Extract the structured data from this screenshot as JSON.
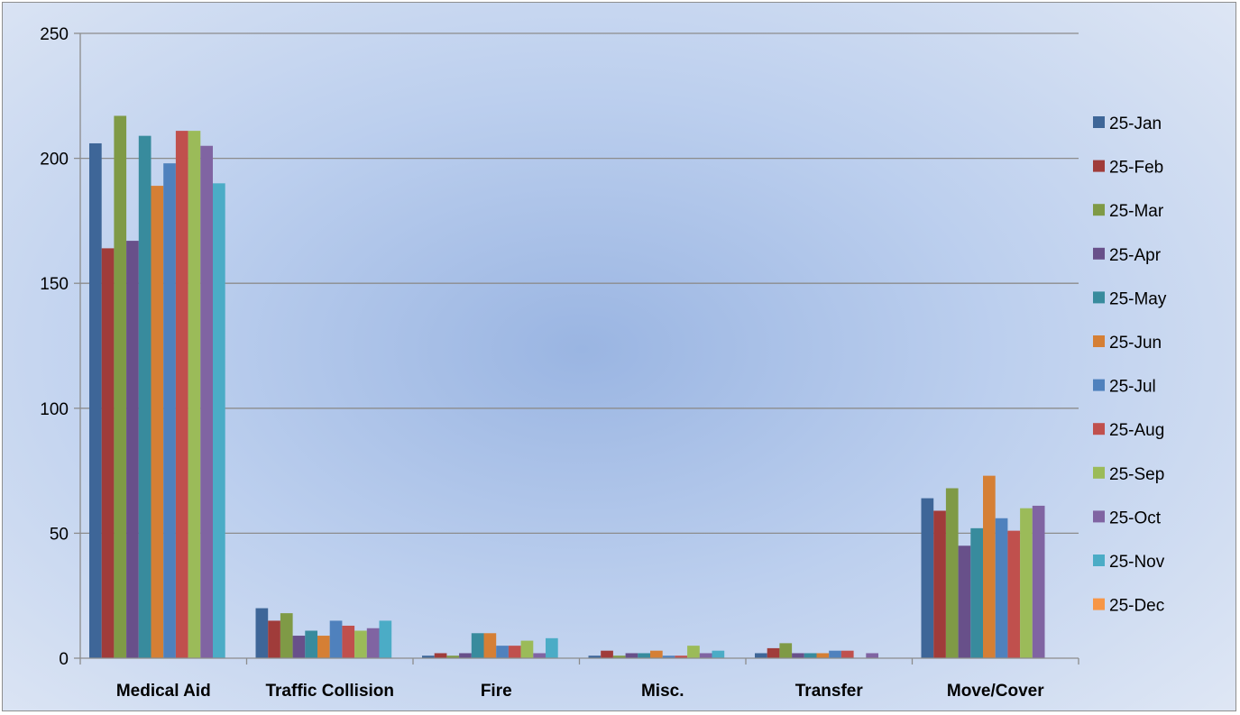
{
  "chart_data": {
    "type": "bar",
    "title": "",
    "xlabel": "",
    "ylabel": "",
    "ylim": [
      0,
      250
    ],
    "yticks": [
      0,
      50,
      100,
      150,
      200,
      250
    ],
    "grid": true,
    "legend_position": "right",
    "categories": [
      "Medical Aid",
      "Traffic Collision",
      "Fire",
      "Misc.",
      "Transfer",
      "Move/Cover"
    ],
    "series": [
      {
        "name": "25-Jan",
        "color": "#3e6698",
        "values": [
          206,
          20,
          1,
          1,
          2,
          64
        ]
      },
      {
        "name": "25-Feb",
        "color": "#a03c3a",
        "values": [
          164,
          15,
          2,
          3,
          4,
          59
        ]
      },
      {
        "name": "25-Mar",
        "color": "#7f9a46",
        "values": [
          217,
          18,
          1,
          1,
          6,
          68
        ]
      },
      {
        "name": "25-Apr",
        "color": "#68508a",
        "values": [
          167,
          9,
          2,
          2,
          2,
          45
        ]
      },
      {
        "name": "25-May",
        "color": "#388b9d",
        "values": [
          209,
          11,
          10,
          2,
          2,
          52
        ]
      },
      {
        "name": "25-Jun",
        "color": "#d57f35",
        "values": [
          189,
          9,
          10,
          3,
          2,
          73
        ]
      },
      {
        "name": "25-Jul",
        "color": "#4f81bd",
        "values": [
          198,
          15,
          5,
          1,
          3,
          56
        ]
      },
      {
        "name": "25-Aug",
        "color": "#c0504d",
        "values": [
          211,
          13,
          5,
          1,
          3,
          51
        ]
      },
      {
        "name": "25-Sep",
        "color": "#9bbb59",
        "values": [
          211,
          11,
          7,
          5,
          0,
          60
        ]
      },
      {
        "name": "25-Oct",
        "color": "#8064a2",
        "values": [
          205,
          12,
          2,
          2,
          2,
          61
        ]
      },
      {
        "name": "25-Nov",
        "color": "#4bacc6",
        "values": [
          190,
          15,
          8,
          3,
          0,
          0
        ]
      },
      {
        "name": "25-Dec",
        "color": "#f79646",
        "values": [
          0,
          0,
          0,
          0,
          0,
          0
        ]
      }
    ]
  }
}
